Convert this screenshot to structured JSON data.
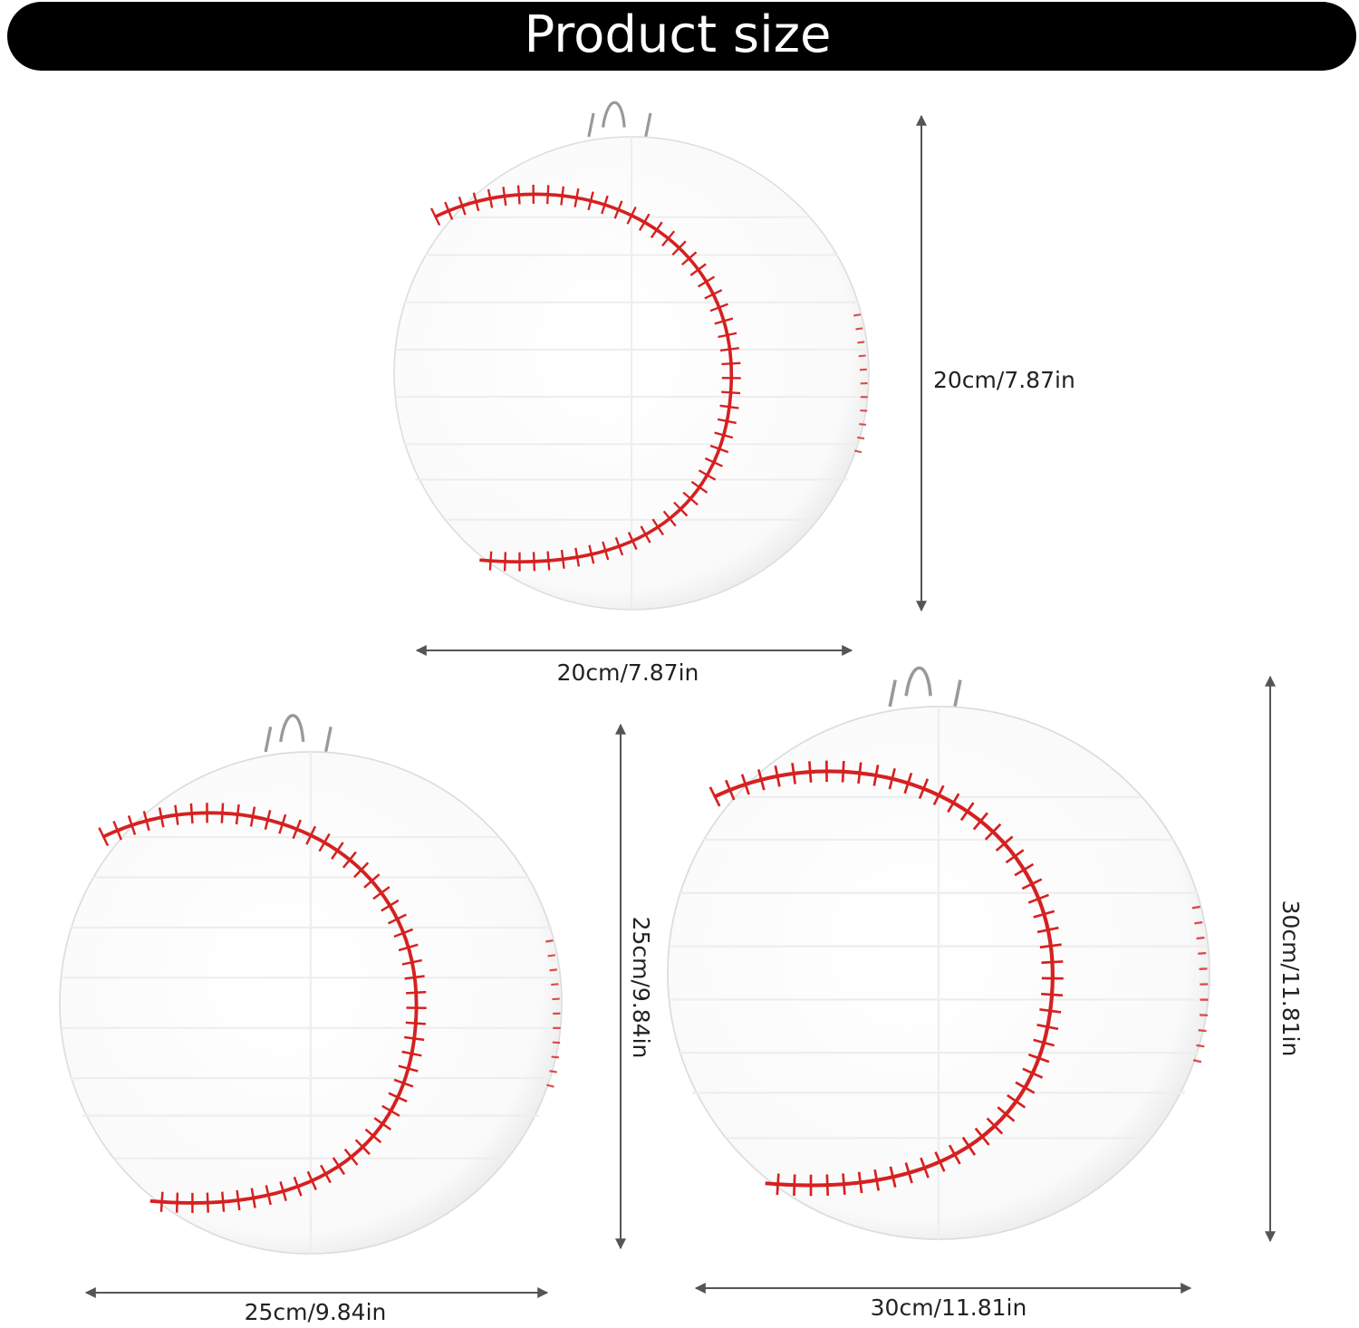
{
  "header": {
    "title": "Product size"
  },
  "lanterns": [
    {
      "height": "20cm/7.87in",
      "width": "20cm/7.87in"
    },
    {
      "height": "25cm/9.84in",
      "width": "25cm/9.84in"
    },
    {
      "height": "30cm/11.81in",
      "width": "30cm/11.81in"
    }
  ]
}
